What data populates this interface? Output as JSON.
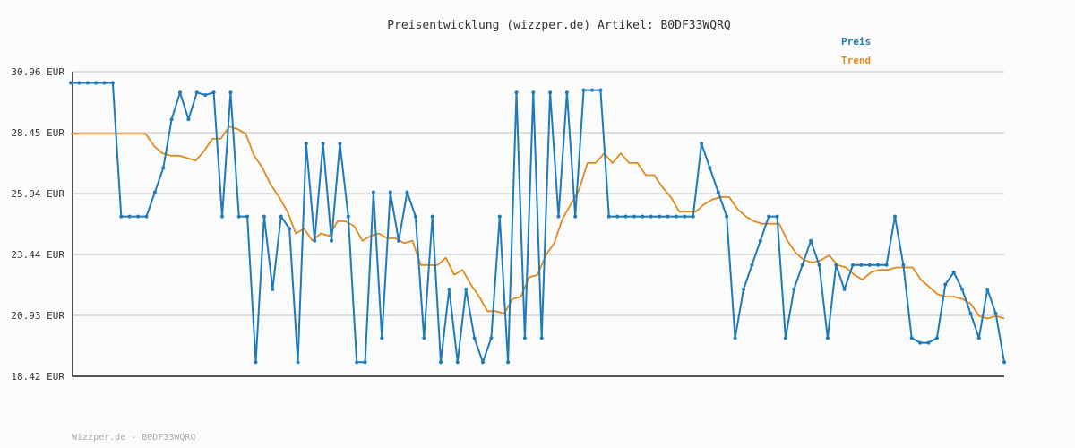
{
  "chart_data": {
    "type": "line",
    "title": "Preisentwicklung (wizzper.de) Artikel: B0DF33WQRQ",
    "ylim": [
      18.42,
      30.96
    ],
    "yticks": [
      "30.96 EUR",
      "28.45 EUR",
      "25.94 EUR",
      "23.44 EUR",
      "20.93 EUR",
      "18.42 EUR"
    ],
    "ytick_values": [
      30.96,
      28.45,
      25.94,
      23.44,
      20.93,
      18.42
    ],
    "grid": true,
    "legend_position": "top-right",
    "series": [
      {
        "name": "Preis",
        "color": "#1f7ab8",
        "values": [
          30.5,
          30.5,
          30.5,
          30.5,
          30.5,
          30.5,
          25.0,
          25.0,
          25.0,
          25.0,
          26.0,
          27.0,
          29.0,
          30.1,
          29.0,
          30.1,
          30.0,
          30.1,
          25.0,
          30.1,
          25.0,
          25.0,
          19.0,
          25.0,
          22.0,
          25.0,
          24.5,
          19.0,
          28.0,
          24.0,
          28.0,
          24.0,
          28.0,
          25.0,
          19.0,
          19.0,
          26.0,
          20.0,
          26.0,
          24.0,
          26.0,
          25.0,
          20.0,
          25.0,
          19.0,
          22.0,
          19.0,
          22.0,
          20.0,
          19.0,
          20.0,
          25.0,
          19.0,
          30.1,
          20.0,
          30.1,
          20.0,
          30.1,
          25.0,
          30.1,
          25.0,
          30.2,
          30.2,
          30.2,
          25.0,
          25.0,
          25.0,
          25.0,
          25.0,
          25.0,
          25.0,
          25.0,
          25.0,
          25.0,
          25.0,
          28.0,
          27.0,
          26.0,
          25.0,
          20.0,
          22.0,
          23.0,
          24.0,
          25.0,
          25.0,
          20.0,
          22.0,
          23.0,
          24.0,
          23.0,
          20.0,
          23.0,
          22.0,
          23.0,
          23.0,
          23.0,
          23.0,
          23.0,
          25.0,
          23.0,
          20.0,
          19.8,
          19.8,
          20.0,
          22.2,
          22.7,
          22.0,
          21.0,
          20.0,
          22.0,
          21.0,
          19.0
        ]
      },
      {
        "name": "Trend",
        "color": "#e08a1e",
        "values": [
          28.4,
          28.4,
          28.4,
          28.4,
          28.4,
          28.4,
          28.4,
          28.4,
          28.4,
          28.4,
          27.9,
          27.6,
          27.5,
          27.5,
          27.4,
          27.3,
          27.7,
          28.2,
          28.2,
          28.7,
          28.6,
          28.4,
          27.5,
          27.0,
          26.3,
          25.8,
          25.2,
          24.3,
          24.5,
          24.0,
          24.3,
          24.2,
          24.8,
          24.8,
          24.6,
          24.0,
          24.2,
          24.3,
          24.1,
          24.1,
          23.9,
          24.0,
          23.0,
          23.0,
          23.0,
          23.3,
          22.6,
          22.8,
          22.2,
          21.7,
          21.1,
          21.1,
          21.0,
          21.6,
          21.7,
          22.5,
          22.6,
          23.4,
          23.9,
          24.9,
          25.5,
          26.1,
          27.2,
          27.2,
          27.6,
          27.2,
          27.6,
          27.2,
          27.2,
          26.7,
          26.7,
          26.2,
          25.8,
          25.2,
          25.2,
          25.2,
          25.5,
          25.7,
          25.8,
          25.8,
          25.3,
          25.0,
          24.8,
          24.7,
          24.7,
          24.7,
          24.0,
          23.5,
          23.2,
          23.1,
          23.2,
          23.4,
          23.0,
          22.9,
          22.6,
          22.4,
          22.7,
          22.8,
          22.8,
          22.9,
          22.9,
          22.9,
          22.4,
          22.1,
          21.8,
          21.7,
          21.7,
          21.6,
          21.4,
          20.9,
          20.8,
          20.9,
          20.8
        ]
      }
    ]
  },
  "footer": "Wizzper.de - B0DF33WQRQ"
}
